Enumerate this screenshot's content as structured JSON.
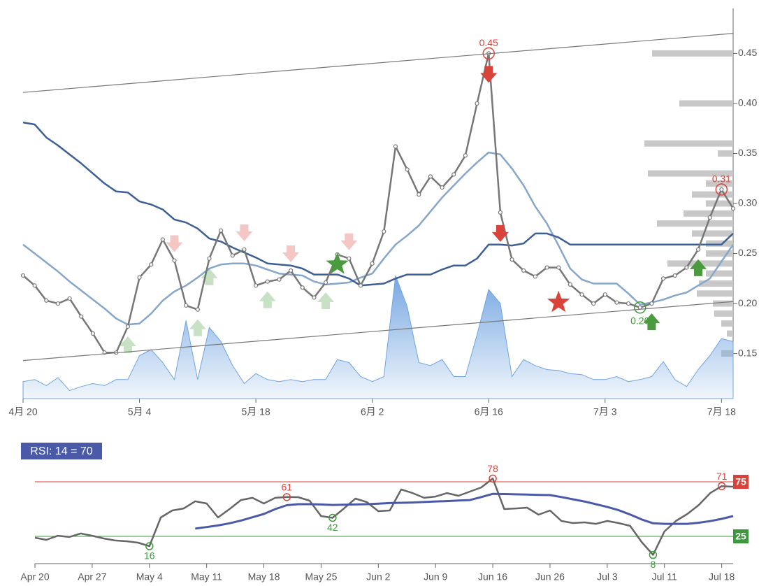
{
  "chart_data": [
    {
      "type": "line",
      "categories": [
        "4月 20",
        null,
        null,
        null,
        null,
        null,
        null,
        null,
        null,
        null,
        "5月 4",
        null,
        null,
        null,
        null,
        null,
        null,
        null,
        null,
        null,
        "5月 18",
        null,
        null,
        null,
        null,
        null,
        null,
        null,
        null,
        null,
        "6月 2",
        null,
        null,
        null,
        null,
        null,
        null,
        null,
        null,
        null,
        "6月 16",
        null,
        null,
        null,
        null,
        null,
        null,
        null,
        null,
        null,
        "7月 3",
        null,
        null,
        null,
        null,
        null,
        null,
        null,
        null,
        null,
        "7月 18",
        null
      ],
      "ylim": [
        0.105,
        0.495
      ],
      "yticks": [
        {
          "value": 0.15,
          "label": "0.15"
        },
        {
          "value": 0.2,
          "label": "0.20"
        },
        {
          "value": 0.25,
          "label": "0.25"
        },
        {
          "value": 0.3,
          "label": "0.30"
        },
        {
          "value": 0.35,
          "label": "0.35"
        },
        {
          "value": 0.4,
          "label": "0.40"
        },
        {
          "value": 0.45,
          "label": "0.45"
        }
      ],
      "series": [
        {
          "kind": "area",
          "color": "#6fa3e0",
          "values": [
            0.122,
            0.124,
            0.118,
            0.126,
            0.113,
            0.117,
            0.12,
            0.118,
            0.124,
            0.124,
            0.148,
            0.154,
            0.141,
            0.124,
            0.183,
            0.124,
            0.176,
            0.162,
            0.138,
            0.12,
            0.13,
            0.124,
            0.122,
            0.124,
            0.122,
            0.124,
            0.124,
            0.144,
            0.141,
            0.127,
            0.122,
            0.127,
            0.228,
            0.197,
            0.141,
            0.138,
            0.144,
            0.127,
            0.127,
            0.169,
            0.214,
            0.2,
            0.127,
            0.144,
            0.138,
            0.134,
            0.133,
            0.13,
            0.129,
            0.124,
            0.124,
            0.127,
            0.122,
            0.124,
            0.127,
            0.142,
            0.124,
            0.117,
            0.134,
            0.148,
            0.165,
            0.162
          ]
        },
        {
          "kind": "line",
          "color": "#86a6cc",
          "values": [
            0.259,
            0.25,
            0.241,
            0.232,
            0.222,
            0.213,
            0.204,
            0.195,
            0.185,
            0.179,
            0.18,
            0.19,
            0.203,
            0.212,
            0.218,
            0.226,
            0.235,
            0.239,
            0.24,
            0.24,
            0.238,
            0.234,
            0.23,
            0.229,
            0.228,
            0.222,
            0.219,
            0.22,
            0.221,
            0.226,
            0.23,
            0.245,
            0.259,
            0.268,
            0.278,
            0.292,
            0.306,
            0.318,
            0.33,
            0.341,
            0.351,
            0.349,
            0.335,
            0.318,
            0.297,
            0.28,
            0.258,
            0.235,
            0.224,
            0.22,
            0.22,
            0.22,
            0.21,
            0.199,
            0.201,
            0.204,
            0.208,
            0.211,
            0.218,
            0.225,
            0.242,
            0.259
          ]
        },
        {
          "kind": "line",
          "color": "#3d5f94",
          "values": [
            0.381,
            0.379,
            0.366,
            0.358,
            0.349,
            0.34,
            0.33,
            0.32,
            0.312,
            0.311,
            0.302,
            0.299,
            0.294,
            0.284,
            0.281,
            0.275,
            0.265,
            0.262,
            0.256,
            0.251,
            0.246,
            0.24,
            0.239,
            0.238,
            0.235,
            0.229,
            0.229,
            0.229,
            0.225,
            0.218,
            0.219,
            0.22,
            0.225,
            0.229,
            0.229,
            0.229,
            0.234,
            0.238,
            0.238,
            0.245,
            0.259,
            0.259,
            0.258,
            0.26,
            0.27,
            0.27,
            0.266,
            0.259,
            0.259,
            0.259,
            0.259,
            0.259,
            0.259,
            0.259,
            0.259,
            0.259,
            0.259,
            0.259,
            0.259,
            0.259,
            0.259,
            0.27
          ]
        },
        {
          "kind": "line",
          "markers": true,
          "color": "#777777",
          "values": [
            0.228,
            0.218,
            0.203,
            0.2,
            0.205,
            0.187,
            0.17,
            0.151,
            0.151,
            0.177,
            0.226,
            0.239,
            0.264,
            0.243,
            0.198,
            0.194,
            0.245,
            0.273,
            0.248,
            0.254,
            0.218,
            0.222,
            0.224,
            0.233,
            0.216,
            0.206,
            0.221,
            0.249,
            0.245,
            0.218,
            0.24,
            0.272,
            0.357,
            0.334,
            0.309,
            0.327,
            0.316,
            0.329,
            0.348,
            0.4,
            0.45,
            0.291,
            0.244,
            0.233,
            0.227,
            0.236,
            0.236,
            0.219,
            0.209,
            0.2,
            0.209,
            0.201,
            0.2,
            0.196,
            0.2,
            0.225,
            0.228,
            0.236,
            0.254,
            0.286,
            0.314,
            0.295
          ],
          "value_labels": [
            null,
            null,
            null,
            null,
            null,
            null,
            null,
            null,
            null,
            null,
            null,
            null,
            null,
            null,
            null,
            null,
            null,
            null,
            null,
            null,
            null,
            null,
            null,
            null,
            null,
            null,
            null,
            null,
            null,
            null,
            null,
            null,
            null,
            null,
            null,
            null,
            null,
            null,
            null,
            null,
            "0.45",
            null,
            null,
            null,
            null,
            null,
            null,
            null,
            null,
            null,
            null,
            null,
            null,
            "0.20",
            null,
            null,
            null,
            null,
            null,
            null,
            "0.31",
            null
          ],
          "value_label_colors": [
            null,
            null,
            null,
            null,
            null,
            null,
            null,
            null,
            null,
            null,
            null,
            null,
            null,
            null,
            null,
            null,
            null,
            null,
            null,
            null,
            null,
            null,
            null,
            null,
            null,
            null,
            null,
            null,
            null,
            null,
            null,
            null,
            null,
            null,
            null,
            null,
            null,
            null,
            null,
            null,
            "#d9433a",
            null,
            null,
            null,
            null,
            null,
            null,
            null,
            null,
            null,
            null,
            null,
            null,
            "#3b9a3b",
            null,
            null,
            null,
            null,
            null,
            null,
            "#d9433a",
            null
          ]
        }
      ],
      "trendlines": [
        [
          0.411,
          0.47
        ],
        [
          0.143,
          0.202
        ]
      ],
      "profile": {
        "color": "#c8c8c8",
        "levels": [
          0.45,
          0.4,
          0.36,
          0.35,
          0.33,
          0.32,
          0.309,
          0.3,
          0.29,
          0.28,
          0.27,
          0.26,
          0.25,
          0.24,
          0.23,
          0.22,
          0.21,
          0.2,
          0.19,
          0.18,
          0.17,
          0.15
        ],
        "volumes": [
          116,
          77,
          127,
          22,
          122,
          39,
          59,
          39,
          71,
          109,
          59,
          39,
          39,
          94,
          39,
          49,
          52,
          29,
          27,
          17,
          9,
          17
        ]
      },
      "signals": [
        {
          "index": 9,
          "kind": "buy-faint"
        },
        {
          "index": 15,
          "kind": "buy-faint"
        },
        {
          "index": 16,
          "kind": "buy-faint"
        },
        {
          "index": 21,
          "kind": "buy-faint"
        },
        {
          "index": 26,
          "kind": "buy-faint"
        },
        {
          "index": 13,
          "kind": "sell-faint"
        },
        {
          "index": 19,
          "kind": "sell-faint"
        },
        {
          "index": 23,
          "kind": "sell-faint"
        },
        {
          "index": 28,
          "kind": "sell-faint"
        },
        {
          "index": 27,
          "kind": "buy-star"
        },
        {
          "index": 54,
          "kind": "buy"
        },
        {
          "index": 58,
          "kind": "buy"
        },
        {
          "index": 40,
          "kind": "sell"
        },
        {
          "index": 41,
          "kind": "sell"
        },
        {
          "index": 46,
          "kind": "sell-star"
        }
      ]
    },
    {
      "type": "line",
      "title": "RSI: 14 = 70",
      "categories": [
        "Apr 20",
        null,
        null,
        null,
        null,
        "Apr 27",
        null,
        null,
        null,
        null,
        "May 4",
        null,
        null,
        null,
        null,
        "May 11",
        null,
        null,
        null,
        null,
        "May 18",
        null,
        null,
        null,
        null,
        "May 25",
        null,
        null,
        null,
        null,
        "Jun 2",
        null,
        null,
        null,
        null,
        "Jun 9",
        null,
        null,
        null,
        null,
        "Jun 16",
        null,
        null,
        null,
        null,
        "Jun 26",
        null,
        null,
        null,
        null,
        "Jul 3",
        null,
        null,
        null,
        null,
        "Jul 11",
        null,
        null,
        null,
        null,
        "Jul 18",
        null
      ],
      "ylim": [
        0,
        100
      ],
      "levels": [
        {
          "value": 75,
          "color": "#d9433a"
        },
        {
          "value": 25,
          "color": "#3b9a3b"
        }
      ],
      "series": [
        {
          "kind": "line",
          "color": "#666666",
          "values": [
            23.7,
            21.8,
            25.6,
            24.4,
            27.6,
            25.6,
            23.1,
            21.2,
            20.5,
            19.2,
            16,
            42.3,
            48.7,
            50.6,
            57.1,
            55.1,
            42.3,
            50.0,
            58.3,
            60.3,
            55.1,
            60.3,
            61,
            60.9,
            57.7,
            43.6,
            42,
            50.6,
            59.6,
            56.4,
            48.1,
            48.7,
            68.0,
            64.7,
            60.3,
            61.5,
            64.7,
            62.2,
            66.0,
            69.9,
            78,
            50.0,
            50.6,
            51.3,
            44.9,
            48.7,
            39.1,
            37.2,
            37.8,
            36.5,
            39.1,
            37.2,
            34.6,
            19.9,
            8,
            29.5,
            39.1,
            45.5,
            53.8,
            64.7,
            71,
            70.5
          ],
          "marked": [
            10,
            22,
            26,
            40,
            54,
            60
          ]
        },
        {
          "kind": "line",
          "width": 3,
          "color": "#4a5aa8",
          "values": [
            null,
            null,
            null,
            null,
            null,
            null,
            null,
            null,
            null,
            null,
            null,
            null,
            null,
            null,
            32.1,
            33.5,
            35.0,
            37.0,
            39.5,
            42.5,
            45.5,
            50.0,
            53.5,
            54.5,
            54.5,
            54.2,
            53.8,
            54.0,
            54.2,
            54.5,
            55.0,
            55.5,
            55.8,
            56.0,
            56.5,
            57.0,
            57.3,
            57.8,
            58.3,
            61.0,
            64.0,
            63.8,
            63.5,
            63.3,
            63.0,
            62.8,
            61.0,
            59.0,
            57.0,
            54.5,
            52.0,
            49.0,
            45.0,
            40.5,
            37.0,
            36.5,
            36.5,
            36.5,
            37.5,
            39.0,
            41.0,
            43.6
          ]
        }
      ]
    }
  ]
}
